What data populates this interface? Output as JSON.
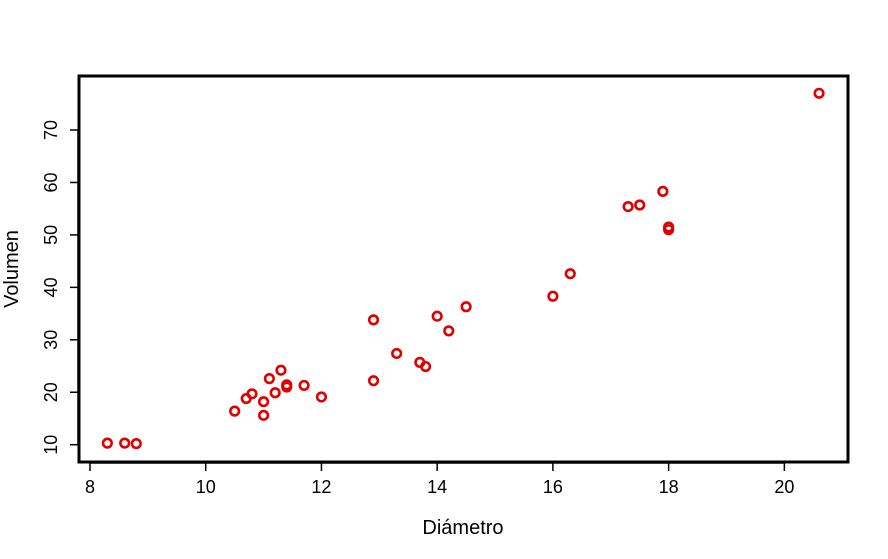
{
  "chart_data": {
    "type": "scatter",
    "xlabel": "Diámetro",
    "ylabel": "Volumen",
    "xlim": [
      7.81,
      21.1
    ],
    "ylim": [
      6.7,
      80.3
    ],
    "xticks": [
      8,
      10,
      12,
      14,
      16,
      18,
      20
    ],
    "yticks": [
      10,
      20,
      30,
      40,
      50,
      60,
      70
    ],
    "xtick_labels": [
      "8",
      "10",
      "12",
      "14",
      "16",
      "18",
      "20"
    ],
    "ytick_labels": [
      "10",
      "20",
      "30",
      "40",
      "50",
      "60",
      "70"
    ],
    "grid": false,
    "marker_color": "#e00000",
    "points": [
      {
        "x": 8.3,
        "y": 10.3
      },
      {
        "x": 8.6,
        "y": 10.3
      },
      {
        "x": 8.8,
        "y": 10.2
      },
      {
        "x": 10.5,
        "y": 16.4
      },
      {
        "x": 10.7,
        "y": 18.8
      },
      {
        "x": 10.8,
        "y": 19.7
      },
      {
        "x": 11.0,
        "y": 15.6
      },
      {
        "x": 11.0,
        "y": 18.2
      },
      {
        "x": 11.1,
        "y": 22.6
      },
      {
        "x": 11.2,
        "y": 19.9
      },
      {
        "x": 11.3,
        "y": 24.2
      },
      {
        "x": 11.4,
        "y": 21.0
      },
      {
        "x": 11.4,
        "y": 21.4
      },
      {
        "x": 11.7,
        "y": 21.3
      },
      {
        "x": 12.0,
        "y": 19.1
      },
      {
        "x": 12.9,
        "y": 22.2
      },
      {
        "x": 12.9,
        "y": 33.8
      },
      {
        "x": 13.3,
        "y": 27.4
      },
      {
        "x": 13.7,
        "y": 25.7
      },
      {
        "x": 13.8,
        "y": 24.9
      },
      {
        "x": 14.0,
        "y": 34.5
      },
      {
        "x": 14.2,
        "y": 31.7
      },
      {
        "x": 14.5,
        "y": 36.3
      },
      {
        "x": 16.0,
        "y": 38.3
      },
      {
        "x": 16.3,
        "y": 42.6
      },
      {
        "x": 17.3,
        "y": 55.4
      },
      {
        "x": 17.5,
        "y": 55.7
      },
      {
        "x": 17.9,
        "y": 58.3
      },
      {
        "x": 18.0,
        "y": 51.5
      },
      {
        "x": 18.0,
        "y": 51.0
      },
      {
        "x": 20.6,
        "y": 77.0
      }
    ]
  }
}
